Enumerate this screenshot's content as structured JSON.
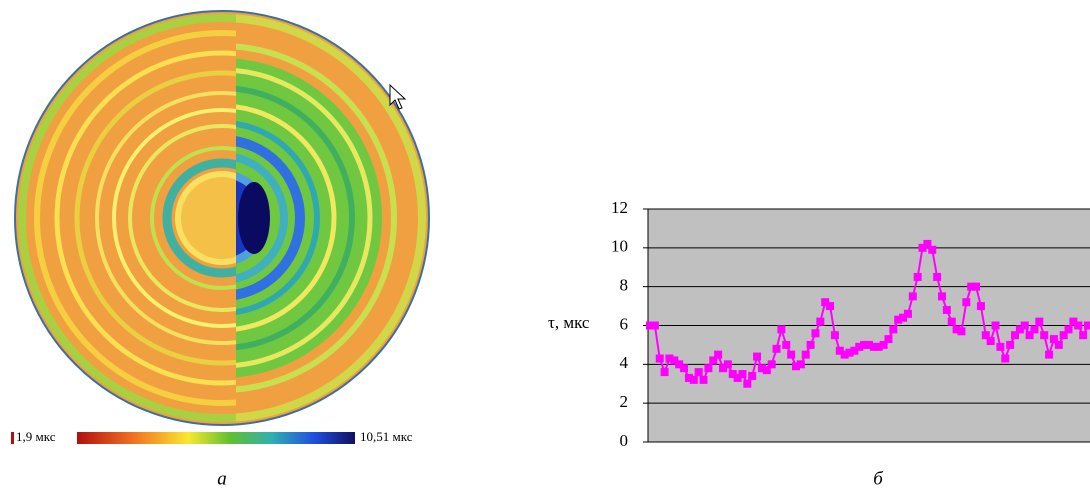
{
  "panel_a": {
    "label": "а",
    "colorbar_min_label": "1,9 мкс",
    "colorbar_max_label": "10,51 мкс"
  },
  "chart_data": {
    "type": "line",
    "panel_label": "б",
    "ylabel": "τ, мкс",
    "values": [
      6,
      6,
      4.3,
      3.6,
      4.3,
      4.2,
      4,
      3.8,
      3.3,
      3.2,
      3.6,
      3.2,
      3.8,
      4.2,
      4.5,
      3.8,
      4,
      3.5,
      3.3,
      3.5,
      3,
      3.4,
      4.4,
      3.8,
      3.7,
      4,
      4.8,
      5.8,
      5,
      4.5,
      3.9,
      4,
      4.5,
      5,
      5.6,
      6.2,
      7.2,
      7,
      5.5,
      4.7,
      4.5,
      4.6,
      4.7,
      4.9,
      5,
      5,
      4.9,
      4.9,
      5,
      5.3,
      5.8,
      6.3,
      6.4,
      6.6,
      7.5,
      8.5,
      10,
      10.2,
      9.9,
      8.5,
      7.5,
      6.8,
      6.2,
      5.8,
      5.7,
      7.2,
      8,
      8,
      7,
      5.5,
      5.2,
      6,
      4.9,
      4.3,
      5,
      5.5,
      5.8,
      6,
      5.5,
      5.8,
      6.2,
      5.5,
      4.5,
      5.3,
      5,
      5.5,
      5.8,
      6.2,
      6,
      5.5,
      6
    ],
    "color": "#ff00ff",
    "plot_background": "#c0c0c0",
    "ylim": [
      0,
      12
    ],
    "yticks": [
      0,
      2,
      4,
      6,
      8,
      10,
      12
    ],
    "grid": true
  }
}
